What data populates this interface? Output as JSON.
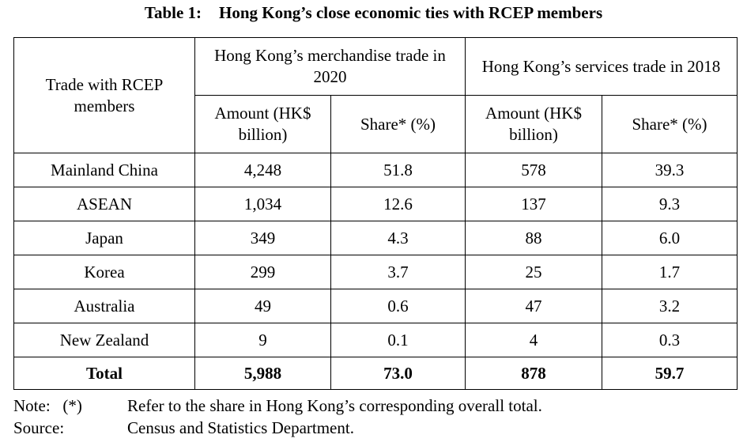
{
  "title": {
    "number": "Table 1:",
    "text": "Hong Kong’s close economic ties with RCEP members"
  },
  "header": {
    "row_label": "Trade with RCEP members",
    "group1": "Hong Kong’s merchandise trade in 2020",
    "group2": "Hong Kong’s services trade in 2018",
    "amount": "Amount (HK$ billion)",
    "share": "Share* (%)"
  },
  "rows": [
    {
      "name": "Mainland China",
      "m_amount": "4,248",
      "m_share": "51.8",
      "s_amount": "578",
      "s_share": "39.3"
    },
    {
      "name": "ASEAN",
      "m_amount": "1,034",
      "m_share": "12.6",
      "s_amount": "137",
      "s_share": "9.3"
    },
    {
      "name": "Japan",
      "m_amount": "349",
      "m_share": "4.3",
      "s_amount": "88",
      "s_share": "6.0"
    },
    {
      "name": "Korea",
      "m_amount": "299",
      "m_share": "3.7",
      "s_amount": "25",
      "s_share": "1.7"
    },
    {
      "name": "Australia",
      "m_amount": "49",
      "m_share": "0.6",
      "s_amount": "47",
      "s_share": "3.2"
    },
    {
      "name": "New Zealand",
      "m_amount": "9",
      "m_share": "0.1",
      "s_amount": "4",
      "s_share": "0.3"
    }
  ],
  "total": {
    "name": "Total",
    "m_amount": "5,988",
    "m_share": "73.0",
    "s_amount": "878",
    "s_share": "59.7"
  },
  "notes": {
    "note_label": "Note:   (*)",
    "note_text": "Refer to the share in Hong Kong’s corresponding overall total.",
    "source_label": "Source:",
    "source_text": "Census and Statistics Department."
  }
}
